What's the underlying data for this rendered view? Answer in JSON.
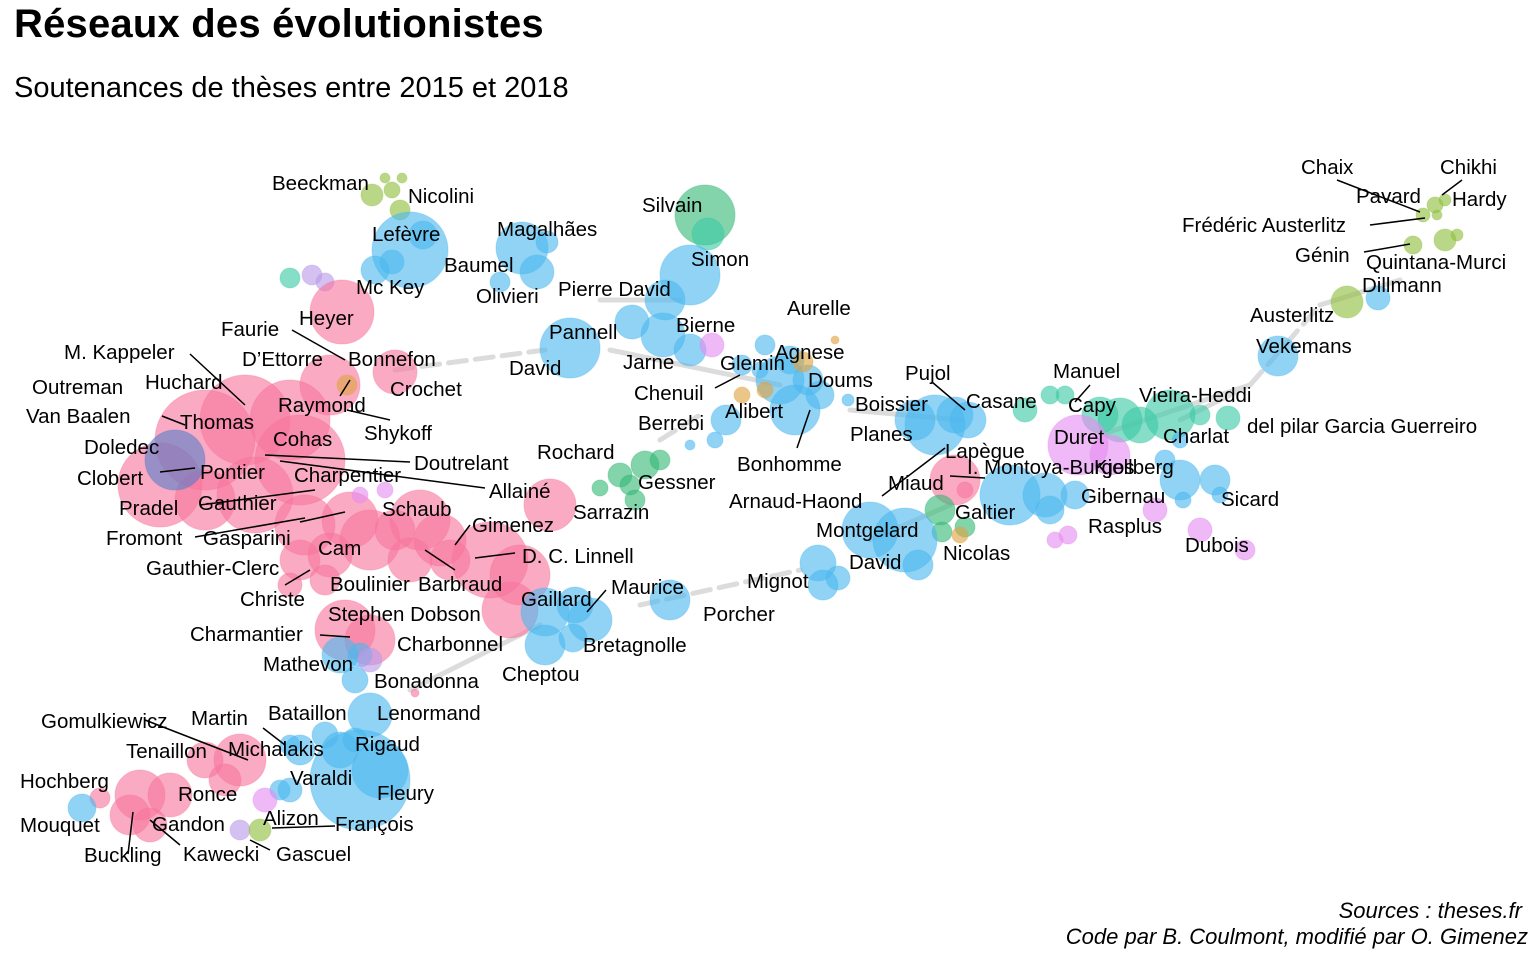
{
  "title": "Réseaux des évolutionistes",
  "subtitle": "Soutenances de thèses entre 2015 et 2018",
  "caption": {
    "line1": "Sources : theses.fr",
    "line2": "Code par B. Coulmont, modifié par O. Gimenez"
  },
  "palette": {
    "pink": "#f7769c",
    "blue": "#4cb8ef",
    "darkblue": "#5b7ec7",
    "green": "#37b878",
    "teal": "#3ccaa6",
    "lime": "#8fbf3f",
    "violet": "#e58df0",
    "purple": "#b99ae8",
    "orange": "#e1a340",
    "edge": "#dcdcdc"
  },
  "chart_data": {
    "type": "network",
    "nodes": [
      {
        "name": "Beeckman"
      },
      {
        "name": "Nicolini"
      },
      {
        "name": "Lefèvre"
      },
      {
        "name": "Mc Key"
      },
      {
        "name": "Magalhães"
      },
      {
        "name": "Baumel"
      },
      {
        "name": "Olivieri"
      },
      {
        "name": "Silvain"
      },
      {
        "name": "Simon"
      },
      {
        "name": "Pierre David"
      },
      {
        "name": "Heyer"
      },
      {
        "name": "Faurie"
      },
      {
        "name": "M. Kappeler"
      },
      {
        "name": "D’Ettorre"
      },
      {
        "name": "Bonnefon"
      },
      {
        "name": "Huchard"
      },
      {
        "name": "Crochet"
      },
      {
        "name": "Outreman"
      },
      {
        "name": "Raymond"
      },
      {
        "name": "Van Baalen"
      },
      {
        "name": "Thomas"
      },
      {
        "name": "Shykoff"
      },
      {
        "name": "Cohas"
      },
      {
        "name": "Doledec"
      },
      {
        "name": "Doutrelant"
      },
      {
        "name": "Pontier"
      },
      {
        "name": "Clobert"
      },
      {
        "name": "Charpentier"
      },
      {
        "name": "Allainé"
      },
      {
        "name": "Pradel"
      },
      {
        "name": "Gauthier"
      },
      {
        "name": "Schaub"
      },
      {
        "name": "Sarrazin"
      },
      {
        "name": "Fromont"
      },
      {
        "name": "Gasparini"
      },
      {
        "name": "Gimenez"
      },
      {
        "name": "Cam"
      },
      {
        "name": "D. C. Linnell"
      },
      {
        "name": "Gauthier-Clerc"
      },
      {
        "name": "Boulinier"
      },
      {
        "name": "Barbraud"
      },
      {
        "name": "Christe"
      },
      {
        "name": "Stephen Dobson"
      },
      {
        "name": "Charmantier"
      },
      {
        "name": "Charbonnel"
      },
      {
        "name": "Mathevon"
      },
      {
        "name": "Bonadonna"
      },
      {
        "name": "Pannell"
      },
      {
        "name": "Bierne"
      },
      {
        "name": "David"
      },
      {
        "name": "Jarne"
      },
      {
        "name": "Glemin"
      },
      {
        "name": "Chenuil"
      },
      {
        "name": "Aurelle"
      },
      {
        "name": "Agnese"
      },
      {
        "name": "Doums"
      },
      {
        "name": "Alibert"
      },
      {
        "name": "Berrebi"
      },
      {
        "name": "Rochard"
      },
      {
        "name": "Gessner"
      },
      {
        "name": "Bonhomme"
      },
      {
        "name": "Arnaud-Haond"
      },
      {
        "name": "Pujol"
      },
      {
        "name": "Boissier"
      },
      {
        "name": "Casane"
      },
      {
        "name": "Planes"
      },
      {
        "name": "Manuel"
      },
      {
        "name": "Capy"
      },
      {
        "name": "Duret"
      },
      {
        "name": "Vieira-Heddi"
      },
      {
        "name": "Charlat"
      },
      {
        "name": "del pilar Garcia Guerreiro"
      },
      {
        "name": "Lapègue"
      },
      {
        "name": "I. Montoya-Burgos"
      },
      {
        "name": "Kjellberg"
      },
      {
        "name": "Miaud"
      },
      {
        "name": "Gibernau"
      },
      {
        "name": "Galtier"
      },
      {
        "name": "Sicard"
      },
      {
        "name": "Montgelard"
      },
      {
        "name": "Rasplus"
      },
      {
        "name": "Dubois"
      },
      {
        "name": "David"
      },
      {
        "name": "Nicolas"
      },
      {
        "name": "Mignot"
      },
      {
        "name": "Maurice"
      },
      {
        "name": "Porcher"
      },
      {
        "name": "Gaillard"
      },
      {
        "name": "Bretagnolle"
      },
      {
        "name": "Cheptou"
      },
      {
        "name": "Lenormand"
      },
      {
        "name": "Bataillon"
      },
      {
        "name": "Rigaud"
      },
      {
        "name": "Martin"
      },
      {
        "name": "Gomulkiewicz"
      },
      {
        "name": "Michalakis"
      },
      {
        "name": "Tenaillon"
      },
      {
        "name": "Varaldi"
      },
      {
        "name": "Fleury"
      },
      {
        "name": "Hochberg"
      },
      {
        "name": "Ronce"
      },
      {
        "name": "Mouquet"
      },
      {
        "name": "Gandon"
      },
      {
        "name": "Alizon"
      },
      {
        "name": "François"
      },
      {
        "name": "Buckling"
      },
      {
        "name": "Kawecki"
      },
      {
        "name": "Gascuel"
      },
      {
        "name": "Chaix"
      },
      {
        "name": "Chikhi"
      },
      {
        "name": "Pavard"
      },
      {
        "name": "Hardy"
      },
      {
        "name": "Frédéric Austerlitz"
      },
      {
        "name": "Génin"
      },
      {
        "name": "Quintana-Murci"
      },
      {
        "name": "Dillmann"
      },
      {
        "name": "Austerlitz"
      },
      {
        "name": "Vekemans"
      }
    ]
  }
}
